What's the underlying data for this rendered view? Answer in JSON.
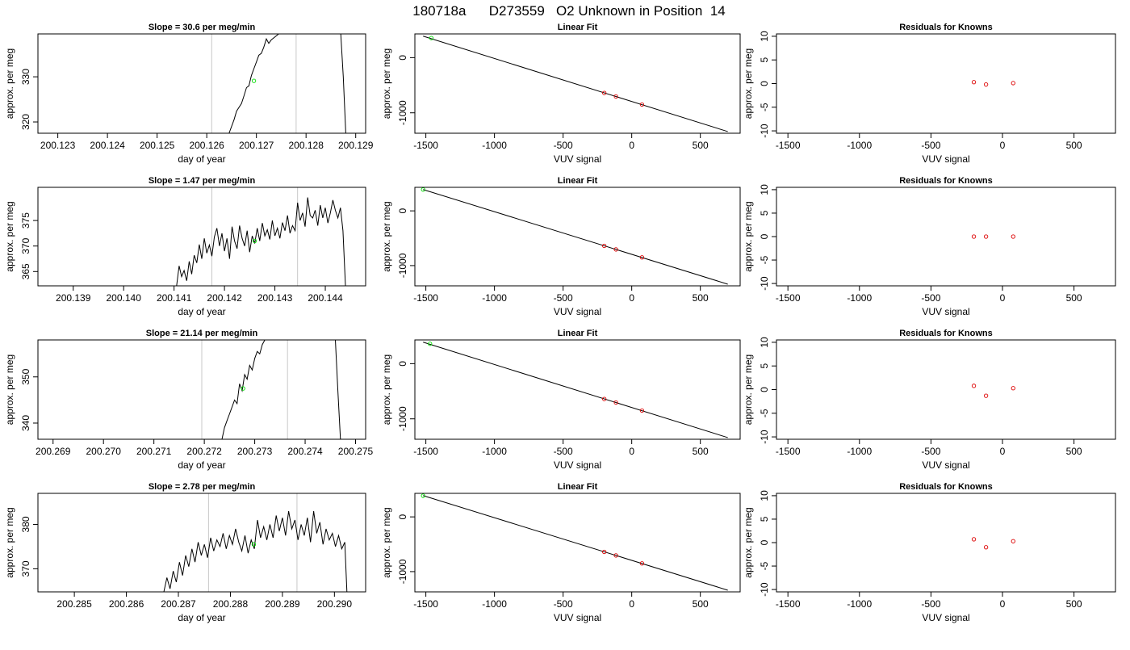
{
  "page_title": "180718a      D273559   O2 Unknown in Position  14",
  "colors": {
    "trace": "#000000",
    "interval_line": "#c8c8c8",
    "unknown_point": "#00dd00",
    "known_point": "#dd0000",
    "fit_line": "#000000"
  },
  "chart_data": [
    {
      "type": "line",
      "title": "Slope =  30.6  per meg/min",
      "xlabel": "day of year",
      "ylabel": "approx. per meg",
      "xlim": [
        200.1226,
        200.1292
      ],
      "ylim": [
        317.5,
        339.5
      ],
      "xticks": [
        "200.123",
        "200.124",
        "200.125",
        "200.126",
        "200.127",
        "200.128",
        "200.129"
      ],
      "yticks": [
        "320",
        "330"
      ],
      "interval_lines_x": [
        200.1261,
        200.1278
      ],
      "unknown_point": {
        "x": 200.12695,
        "y": 329.1
      },
      "series": [
        {
          "x": [
            200.12645,
            200.12655,
            200.1266,
            200.1267,
            200.12675,
            200.1268,
            200.12685,
            200.1269,
            200.12695,
            200.127,
            200.12705,
            200.1271,
            200.12715,
            200.1272,
            200.12725,
            200.1273,
            200.12745,
            200.1287,
            200.12875,
            200.1288
          ],
          "y": [
            317.5,
            320.5,
            322.4,
            324.1,
            325.8,
            327.6,
            328.0,
            330.3,
            331.8,
            333.3,
            334.8,
            335.2,
            336.6,
            338.4,
            337.4,
            338.2,
            339.5,
            339.5,
            330.0,
            317.5
          ]
        }
      ]
    },
    {
      "type": "line",
      "title": "Linear Fit",
      "xlabel": "VUV signal",
      "ylabel": "approx. per meg",
      "xlim": [
        -1580,
        790
      ],
      "ylim": [
        -1370,
        430
      ],
      "xticks": [
        -1500,
        -1000,
        -500,
        0,
        500
      ],
      "yticks": [
        0,
        -1000
      ],
      "fit": {
        "x": [
          -1520,
          700
        ],
        "y": [
          390,
          -1340
        ]
      },
      "known_points": [
        {
          "x": -200,
          "y": -640
        },
        {
          "x": -115,
          "y": -705
        },
        {
          "x": 75,
          "y": -850
        }
      ],
      "unknown_point": {
        "x": -1460,
        "y": 355
      }
    },
    {
      "type": "scatter",
      "title": "Residuals for Knowns",
      "xlabel": "VUV signal",
      "ylabel": "approx. per meg",
      "xlim": [
        -1580,
        790
      ],
      "ylim": [
        -10.5,
        10.5
      ],
      "xticks": [
        -1500,
        -1000,
        -500,
        0,
        500
      ],
      "yticks": [
        10,
        5,
        0,
        -5,
        -10
      ],
      "points": [
        {
          "x": -200,
          "y": 0.3
        },
        {
          "x": -115,
          "y": -0.2
        },
        {
          "x": 75,
          "y": 0.1
        }
      ]
    },
    {
      "type": "line",
      "title": "Slope =  1.47  per meg/min",
      "xlabel": "day of year",
      "ylabel": "approx. per meg",
      "xlim": [
        200.1383,
        200.1448
      ],
      "ylim": [
        362.2,
        381.5
      ],
      "xticks": [
        "200.139",
        "200.140",
        "200.141",
        "200.142",
        "200.143",
        "200.144"
      ],
      "yticks": [
        "365",
        "370",
        "375"
      ],
      "interval_lines_x": [
        200.14175,
        200.14345
      ],
      "unknown_point": {
        "x": 200.1426,
        "y": 371.0
      },
      "series": [
        {
          "x": [
            200.14105,
            200.1411,
            200.14115,
            200.1412,
            200.14125,
            200.1413,
            200.14135,
            200.1414,
            200.14145,
            200.1415,
            200.14155,
            200.1416,
            200.14165,
            200.1417,
            200.14175,
            200.1418,
            200.14185,
            200.1419,
            200.14195,
            200.142,
            200.14205,
            200.1421,
            200.14215,
            200.1422,
            200.14225,
            200.1423,
            200.14235,
            200.1424,
            200.14245,
            200.1425,
            200.14255,
            200.1426,
            200.14265,
            200.1427,
            200.14275,
            200.1428,
            200.14285,
            200.1429,
            200.14295,
            200.143,
            200.14305,
            200.1431,
            200.14315,
            200.1432,
            200.14325,
            200.1433,
            200.14335,
            200.1434,
            200.14345,
            200.1435,
            200.14355,
            200.1436,
            200.14365,
            200.1437,
            200.14375,
            200.1438,
            200.14385,
            200.1439,
            200.14395,
            200.144,
            200.14405,
            200.1441,
            200.14415,
            200.1442,
            200.14425,
            200.1443,
            200.14435,
            200.1444
          ],
          "y": [
            362.2,
            366.1,
            364.0,
            365.2,
            363.2,
            367.0,
            364.5,
            368.2,
            366.7,
            370.3,
            367.5,
            371.5,
            368.6,
            370.2,
            368.0,
            371.8,
            373.5,
            370.0,
            372.5,
            369.0,
            371.5,
            367.5,
            373.8,
            371.0,
            369.5,
            374.0,
            371.5,
            370.0,
            373.0,
            368.8,
            372.0,
            370.5,
            373.5,
            371.0,
            374.5,
            372.0,
            373.2,
            371.3,
            375.0,
            372.0,
            373.5,
            371.5,
            374.6,
            373.0,
            376.0,
            372.5,
            374.0,
            373.0,
            378.5,
            375.0,
            376.5,
            373.8,
            379.5,
            376.0,
            375.5,
            377.0,
            374.0,
            378.0,
            375.5,
            377.5,
            374.5,
            376.5,
            379.0,
            377.0,
            375.5,
            377.5,
            373.0,
            362.2
          ]
        }
      ]
    },
    {
      "type": "line",
      "title": "Linear Fit",
      "xlabel": "VUV signal",
      "ylabel": "approx. per meg",
      "xlim": [
        -1580,
        790
      ],
      "ylim": [
        -1370,
        430
      ],
      "xticks": [
        -1500,
        -1000,
        -500,
        0,
        500
      ],
      "yticks": [
        0,
        -1000
      ],
      "fit": {
        "x": [
          -1520,
          700
        ],
        "y": [
          390,
          -1340
        ]
      },
      "known_points": [
        {
          "x": -200,
          "y": -640
        },
        {
          "x": -115,
          "y": -705
        },
        {
          "x": 75,
          "y": -850
        }
      ],
      "unknown_point": {
        "x": -1520,
        "y": 390
      }
    },
    {
      "type": "scatter",
      "title": "Residuals for Knowns",
      "xlabel": "VUV signal",
      "ylabel": "approx. per meg",
      "xlim": [
        -1580,
        790
      ],
      "ylim": [
        -10.5,
        10.5
      ],
      "xticks": [
        -1500,
        -1000,
        -500,
        0,
        500
      ],
      "yticks": [
        10,
        5,
        0,
        -5,
        -10
      ],
      "points": [
        {
          "x": -200,
          "y": 0.0
        },
        {
          "x": -115,
          "y": 0.0
        },
        {
          "x": 75,
          "y": 0.0
        }
      ]
    },
    {
      "type": "line",
      "title": "Slope =  21.14  per meg/min",
      "xlabel": "day of year",
      "ylabel": "approx. per meg",
      "xlim": [
        200.2687,
        200.2752
      ],
      "ylim": [
        336.5,
        358.0
      ],
      "xticks": [
        "200.269",
        "200.270",
        "200.271",
        "200.272",
        "200.273",
        "200.274",
        "200.275"
      ],
      "yticks": [
        "340",
        "350"
      ],
      "interval_lines_x": [
        200.27195,
        200.27365
      ],
      "unknown_point": {
        "x": 200.27277,
        "y": 347.5
      },
      "series": [
        {
          "x": [
            200.27235,
            200.2724,
            200.27245,
            200.2725,
            200.27255,
            200.2726,
            200.27265,
            200.2727,
            200.27275,
            200.2728,
            200.27285,
            200.2729,
            200.27295,
            200.273,
            200.27305,
            200.2731,
            200.27315,
            200.2732,
            200.2733,
            200.2746,
            200.27465,
            200.2747
          ],
          "y": [
            336.5,
            339.0,
            340.5,
            342.0,
            343.5,
            345.0,
            344.2,
            348.5,
            347.0,
            350.5,
            349.5,
            352.5,
            351.5,
            354.0,
            355.5,
            355.0,
            357.0,
            358.0,
            358.0,
            358.0,
            347.0,
            336.5
          ]
        }
      ]
    },
    {
      "type": "line",
      "title": "Linear Fit",
      "xlabel": "VUV signal",
      "ylabel": "approx. per meg",
      "xlim": [
        -1580,
        790
      ],
      "ylim": [
        -1370,
        430
      ],
      "xticks": [
        -1500,
        -1000,
        -500,
        0,
        500
      ],
      "yticks": [
        0,
        -1000
      ],
      "fit": {
        "x": [
          -1520,
          700
        ],
        "y": [
          390,
          -1340
        ]
      },
      "known_points": [
        {
          "x": -200,
          "y": -640
        },
        {
          "x": -115,
          "y": -705
        },
        {
          "x": 75,
          "y": -850
        }
      ],
      "unknown_point": {
        "x": -1470,
        "y": 360
      }
    },
    {
      "type": "scatter",
      "title": "Residuals for Knowns",
      "xlabel": "VUV signal",
      "ylabel": "approx. per meg",
      "xlim": [
        -1580,
        790
      ],
      "ylim": [
        -10.5,
        10.5
      ],
      "xticks": [
        -1500,
        -1000,
        -500,
        0,
        500
      ],
      "yticks": [
        10,
        5,
        0,
        -5,
        -10
      ],
      "points": [
        {
          "x": -200,
          "y": 0.8
        },
        {
          "x": -115,
          "y": -1.3
        },
        {
          "x": 75,
          "y": 0.3
        }
      ]
    },
    {
      "type": "line",
      "title": "Slope =  2.78  per meg/min",
      "xlabel": "day of year",
      "ylabel": "approx. per meg",
      "xlim": [
        200.2843,
        200.2906
      ],
      "ylim": [
        364.8,
        387.0
      ],
      "xticks": [
        "200.285",
        "200.286",
        "200.287",
        "200.288",
        "200.289",
        "200.290"
      ],
      "yticks": [
        "370",
        "380"
      ],
      "interval_lines_x": [
        200.28758,
        200.28928
      ],
      "unknown_point": {
        "x": 200.28845,
        "y": 375.5
      },
      "series": [
        {
          "x": [
            200.28672,
            200.28678,
            200.28684,
            200.2869,
            200.28696,
            200.28702,
            200.28708,
            200.28714,
            200.2872,
            200.28726,
            200.28732,
            200.28738,
            200.28744,
            200.2875,
            200.28756,
            200.28762,
            200.28768,
            200.28774,
            200.2878,
            200.28786,
            200.28792,
            200.28798,
            200.28804,
            200.2881,
            200.28816,
            200.28822,
            200.28828,
            200.28834,
            200.2884,
            200.28846,
            200.28852,
            200.28858,
            200.28864,
            200.2887,
            200.28876,
            200.28882,
            200.28888,
            200.28894,
            200.289,
            200.28906,
            200.28912,
            200.28918,
            200.28924,
            200.2893,
            200.28936,
            200.28942,
            200.28948,
            200.28954,
            200.2896,
            200.28966,
            200.28972,
            200.28978,
            200.28984,
            200.2899,
            200.28996,
            200.29002,
            200.29008,
            200.29014,
            200.2902,
            200.29024
          ],
          "y": [
            364.8,
            368.0,
            365.5,
            369.5,
            367.0,
            371.5,
            368.5,
            373.0,
            370.5,
            374.5,
            371.5,
            376.0,
            373.0,
            375.5,
            372.5,
            377.0,
            374.0,
            376.5,
            375.0,
            378.0,
            374.5,
            377.5,
            375.5,
            379.0,
            376.0,
            374.0,
            377.5,
            373.5,
            376.5,
            374.5,
            381.0,
            377.0,
            379.5,
            376.5,
            380.0,
            377.0,
            382.0,
            378.5,
            381.5,
            377.5,
            383.0,
            379.0,
            381.0,
            376.5,
            380.0,
            377.5,
            381.5,
            376.0,
            383.0,
            378.0,
            380.5,
            375.5,
            379.0,
            376.5,
            378.0,
            375.0,
            377.5,
            374.5,
            376.0,
            364.8
          ]
        }
      ]
    },
    {
      "type": "line",
      "title": "Linear Fit",
      "xlabel": "VUV signal",
      "ylabel": "approx. per meg",
      "xlim": [
        -1580,
        790
      ],
      "ylim": [
        -1370,
        430
      ],
      "xticks": [
        -1500,
        -1000,
        -500,
        0,
        500
      ],
      "yticks": [
        0,
        -1000
      ],
      "fit": {
        "x": [
          -1520,
          700
        ],
        "y": [
          390,
          -1340
        ]
      },
      "known_points": [
        {
          "x": -200,
          "y": -640
        },
        {
          "x": -115,
          "y": -705
        },
        {
          "x": 75,
          "y": -850
        }
      ],
      "unknown_point": {
        "x": -1520,
        "y": 385
      }
    },
    {
      "type": "scatter",
      "title": "Residuals for Knowns",
      "xlabel": "VUV signal",
      "ylabel": "approx. per meg",
      "xlim": [
        -1580,
        790
      ],
      "ylim": [
        -10.5,
        10.5
      ],
      "xticks": [
        -1500,
        -1000,
        -500,
        0,
        500
      ],
      "yticks": [
        10,
        5,
        0,
        -5,
        -10
      ],
      "points": [
        {
          "x": -200,
          "y": 0.7
        },
        {
          "x": -115,
          "y": -1.0
        },
        {
          "x": 75,
          "y": 0.3
        }
      ]
    }
  ]
}
